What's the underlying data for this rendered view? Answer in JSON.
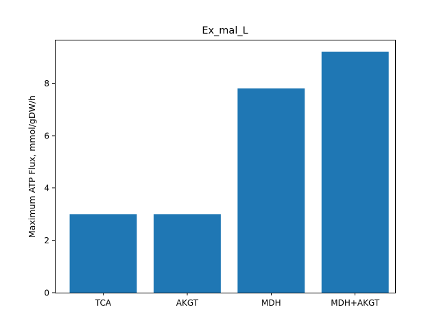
{
  "chart_data": {
    "type": "bar",
    "title": "Ex_mal_L",
    "xlabel": "",
    "ylabel": "Maximum ATP Flux, mmol/gDW/h",
    "categories": [
      "TCA",
      "AKGT",
      "MDH",
      "MDH+AKGT"
    ],
    "values": [
      3.0,
      3.0,
      7.8,
      9.2
    ],
    "ylim": [
      0,
      9.66
    ],
    "yticks": [
      0,
      2,
      4,
      6,
      8
    ],
    "grid": false,
    "bar_color": "#1f77b4"
  }
}
